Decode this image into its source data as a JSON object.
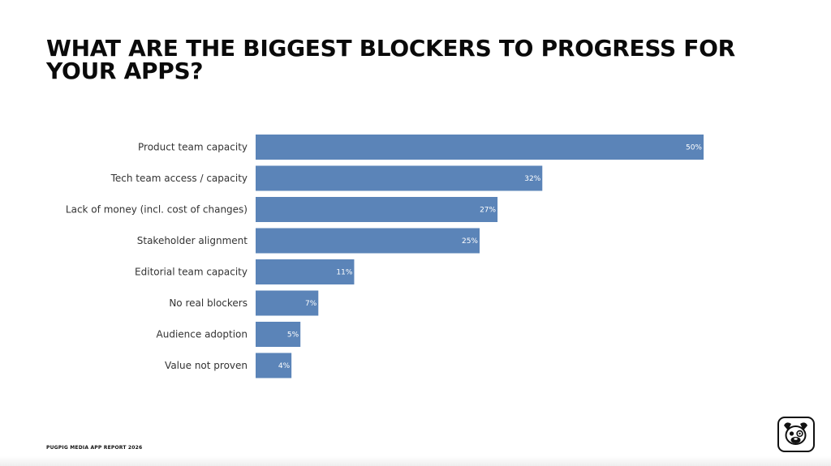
{
  "slide": {
    "title": "WHAT ARE THE BIGGEST BLOCKERS TO PROGRESS FOR YOUR APPS?",
    "footer": "PUGPIG MEDIA APP REPORT 2026",
    "logo_icon": "pug-face-icon"
  },
  "chart_data": {
    "type": "bar",
    "orientation": "horizontal",
    "categories": [
      "Product team capacity",
      "Tech team access / capacity",
      "Lack of money (incl. cost of changes)",
      "Stakeholder alignment",
      "Editorial team capacity",
      "No real blockers",
      "Audience adoption",
      "Value not proven"
    ],
    "values": [
      50,
      32,
      27,
      25,
      11,
      7,
      5,
      4
    ],
    "value_labels": [
      "50%",
      "32%",
      "27%",
      "25%",
      "11%",
      "7%",
      "5%",
      "4%"
    ],
    "unit": "%",
    "xlim": [
      0,
      50
    ],
    "grid": false,
    "legend": "none",
    "bar_color": "#5b84b8"
  }
}
